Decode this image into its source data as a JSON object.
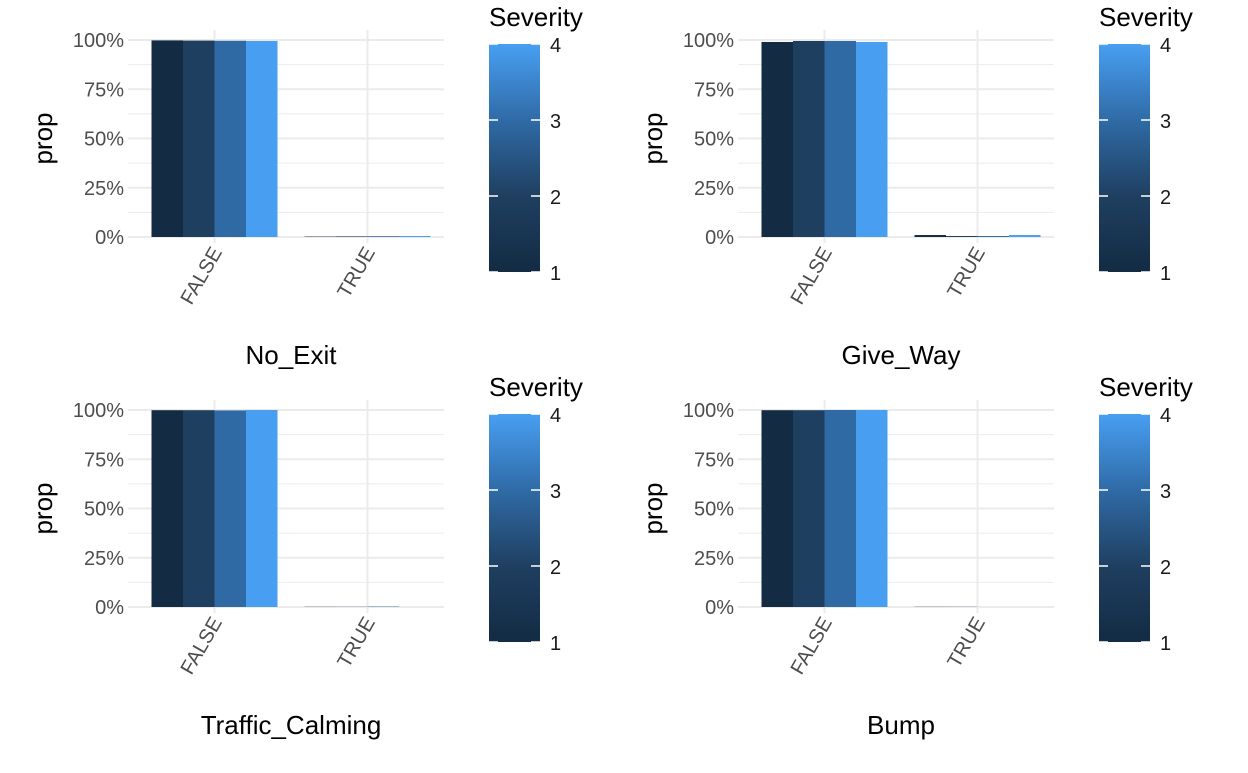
{
  "chart_data": [
    {
      "type": "bar",
      "title": "",
      "xlabel": "No_Exit",
      "ylabel": "prop",
      "categories": [
        "FALSE",
        "TRUE"
      ],
      "series": [
        {
          "name": "1",
          "values": [
            0.998,
            0.002
          ]
        },
        {
          "name": "2",
          "values": [
            0.997,
            0.003
          ]
        },
        {
          "name": "3",
          "values": [
            0.996,
            0.004
          ]
        },
        {
          "name": "4",
          "values": [
            0.995,
            0.005
          ]
        }
      ],
      "ylim": [
        0,
        1
      ],
      "yticks": [
        "0%",
        "25%",
        "50%",
        "75%",
        "100%"
      ],
      "legend": {
        "title": "Severity",
        "labels": [
          "1",
          "2",
          "3",
          "4"
        ],
        "placement": "right"
      },
      "grid": true
    },
    {
      "type": "bar",
      "title": "",
      "xlabel": "Give_Way",
      "ylabel": "prop",
      "categories": [
        "FALSE",
        "TRUE"
      ],
      "series": [
        {
          "name": "1",
          "values": [
            0.99,
            0.01
          ]
        },
        {
          "name": "2",
          "values": [
            0.995,
            0.005
          ]
        },
        {
          "name": "3",
          "values": [
            0.995,
            0.005
          ]
        },
        {
          "name": "4",
          "values": [
            0.99,
            0.01
          ]
        }
      ],
      "ylim": [
        0,
        1
      ],
      "yticks": [
        "0%",
        "25%",
        "50%",
        "75%",
        "100%"
      ],
      "legend": {
        "title": "Severity",
        "labels": [
          "1",
          "2",
          "3",
          "4"
        ],
        "placement": "right"
      },
      "grid": true
    },
    {
      "type": "bar",
      "title": "",
      "xlabel": "Traffic_Calming",
      "ylabel": "prop",
      "categories": [
        "FALSE",
        "TRUE"
      ],
      "series": [
        {
          "name": "1",
          "values": [
            0.999,
            0.001
          ]
        },
        {
          "name": "2",
          "values": [
            0.999,
            0.001
          ]
        },
        {
          "name": "3",
          "values": [
            0.998,
            0.002
          ]
        },
        {
          "name": "4",
          "values": [
            1.0,
            0.0
          ]
        }
      ],
      "ylim": [
        0,
        1
      ],
      "yticks": [
        "0%",
        "25%",
        "50%",
        "75%",
        "100%"
      ],
      "legend": {
        "title": "Severity",
        "labels": [
          "1",
          "2",
          "3",
          "4"
        ],
        "placement": "right"
      },
      "grid": true
    },
    {
      "type": "bar",
      "title": "",
      "xlabel": "Bump",
      "ylabel": "prop",
      "categories": [
        "FALSE",
        "TRUE"
      ],
      "series": [
        {
          "name": "1",
          "values": [
            0.999,
            0.001
          ]
        },
        {
          "name": "2",
          "values": [
            0.999,
            0.001
          ]
        },
        {
          "name": "3",
          "values": [
            1.0,
            0.0
          ]
        },
        {
          "name": "4",
          "values": [
            1.0,
            0.0
          ]
        }
      ],
      "ylim": [
        0,
        1
      ],
      "yticks": [
        "0%",
        "25%",
        "50%",
        "75%",
        "100%"
      ],
      "legend": {
        "title": "Severity",
        "labels": [
          "1",
          "2",
          "3",
          "4"
        ],
        "placement": "right"
      },
      "grid": true
    }
  ],
  "colors": {
    "severity_1": "#132b43",
    "severity_2": "#1f3f60",
    "severity_3": "#2f6aa5",
    "severity_4": "#489ff2",
    "grid": "#ebebeb"
  }
}
